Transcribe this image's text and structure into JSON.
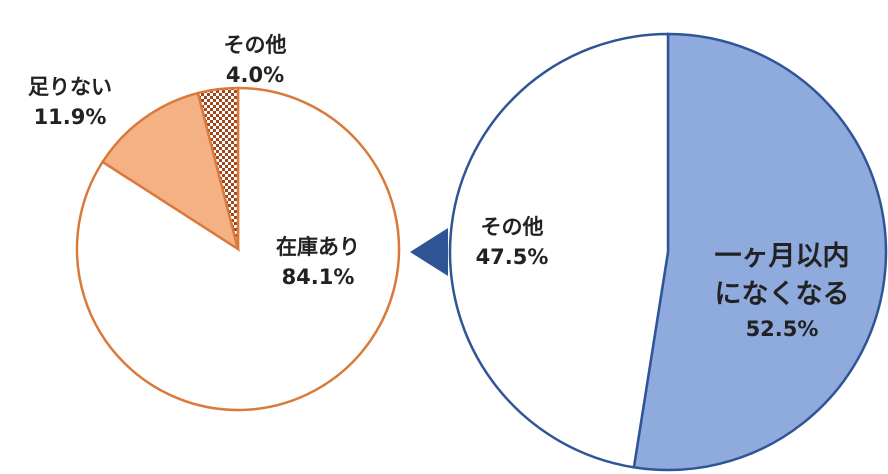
{
  "chart_data": [
    {
      "type": "pie",
      "categories": [
        "在庫あり",
        "足りない",
        "その他"
      ],
      "values": [
        84.1,
        11.9,
        4.0
      ],
      "value_labels": [
        "84.1%",
        "11.9%",
        "4.0%"
      ],
      "colors": [
        "#ffffff",
        "#f4b183",
        "pattern"
      ],
      "stroke": "#d9793a"
    },
    {
      "type": "pie",
      "categories": [
        "一ヶ月以内になくなる",
        "その他"
      ],
      "values": [
        52.5,
        47.5
      ],
      "value_labels": [
        "52.5%",
        "47.5%"
      ],
      "colors": [
        "#8faadc",
        "#ffffff"
      ],
      "stroke": "#2f5597"
    }
  ]
}
